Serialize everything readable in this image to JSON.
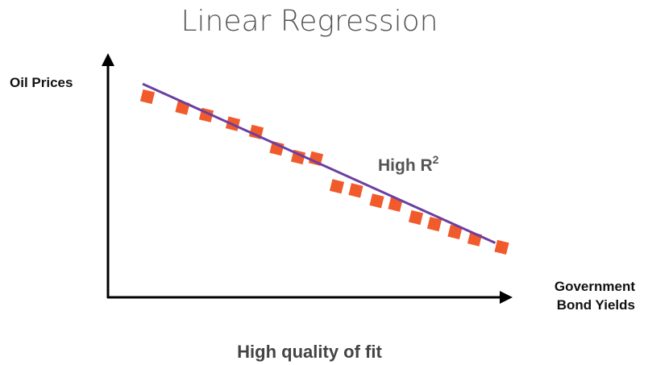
{
  "title": "Linear Regression",
  "y_axis_label": "Oil Prices",
  "x_axis_label": [
    "Government",
    "Bond Yields"
  ],
  "annotation": {
    "text": "High R",
    "superscript": "2"
  },
  "caption": "High quality of fit",
  "colors": {
    "points": "#f15a2b",
    "line": "#6b3fa0",
    "axis": "#000000",
    "title": "#555555",
    "text": "#333333"
  },
  "chart_data": {
    "type": "scatter",
    "title": "Linear Regression",
    "xlabel": "Government Bond Yields",
    "ylabel": "Oil Prices",
    "xlim": [
      0,
      100
    ],
    "ylim": [
      0,
      100
    ],
    "points": [
      {
        "x": 9.8,
        "y": 83.0
      },
      {
        "x": 18.5,
        "y": 78.5
      },
      {
        "x": 24.4,
        "y": 75.4
      },
      {
        "x": 31.0,
        "y": 71.8
      },
      {
        "x": 36.8,
        "y": 68.4
      },
      {
        "x": 41.9,
        "y": 61.6
      },
      {
        "x": 47.2,
        "y": 58.0
      },
      {
        "x": 51.6,
        "y": 57.4
      },
      {
        "x": 56.8,
        "y": 45.9
      },
      {
        "x": 61.5,
        "y": 44.2
      },
      {
        "x": 66.7,
        "y": 39.9
      },
      {
        "x": 71.3,
        "y": 38.4
      },
      {
        "x": 76.4,
        "y": 33.0
      },
      {
        "x": 81.0,
        "y": 30.3
      },
      {
        "x": 86.1,
        "y": 27.0
      },
      {
        "x": 91.0,
        "y": 24.1
      },
      {
        "x": 97.7,
        "y": 20.7
      }
    ],
    "fit_line": {
      "x": [
        8.6,
        96.1
      ],
      "y": [
        88.3,
        22.5
      ]
    }
  }
}
